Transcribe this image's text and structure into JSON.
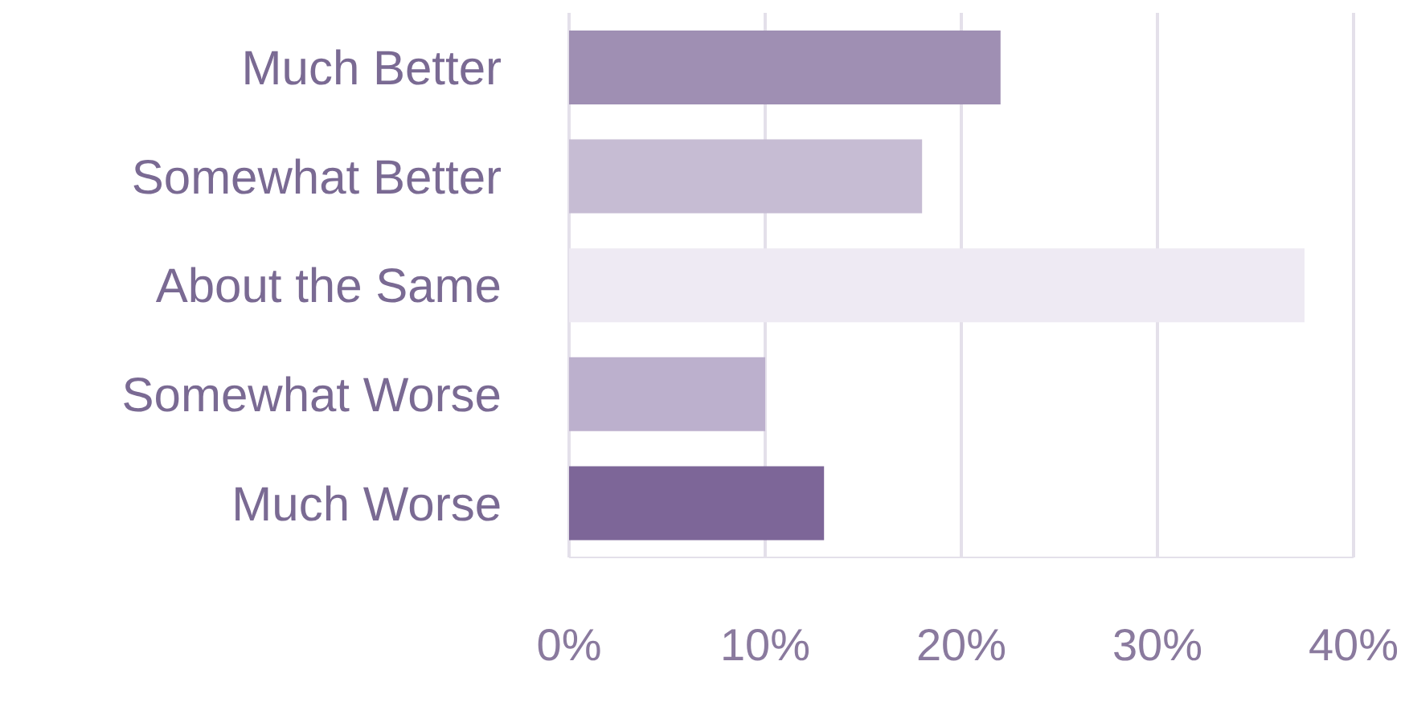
{
  "chart_data": {
    "type": "bar",
    "orientation": "horizontal",
    "categories": [
      "Much Better",
      "Somewhat Better",
      "About the Same",
      "Somewhat Worse",
      "Much Worse"
    ],
    "values": [
      22,
      18,
      37.5,
      10,
      13
    ],
    "colors": [
      "#9f8fb3",
      "#c6bcd3",
      "#eeeaf3",
      "#bcb0cd",
      "#7d6698"
    ],
    "xlim": [
      0,
      40
    ],
    "xticks": [
      {
        "value": 0,
        "label": "0%"
      },
      {
        "value": 10,
        "label": "10%"
      },
      {
        "value": 20,
        "label": "20%"
      },
      {
        "value": 30,
        "label": "30%"
      },
      {
        "value": 40,
        "label": "40%"
      }
    ],
    "grid": "x"
  }
}
